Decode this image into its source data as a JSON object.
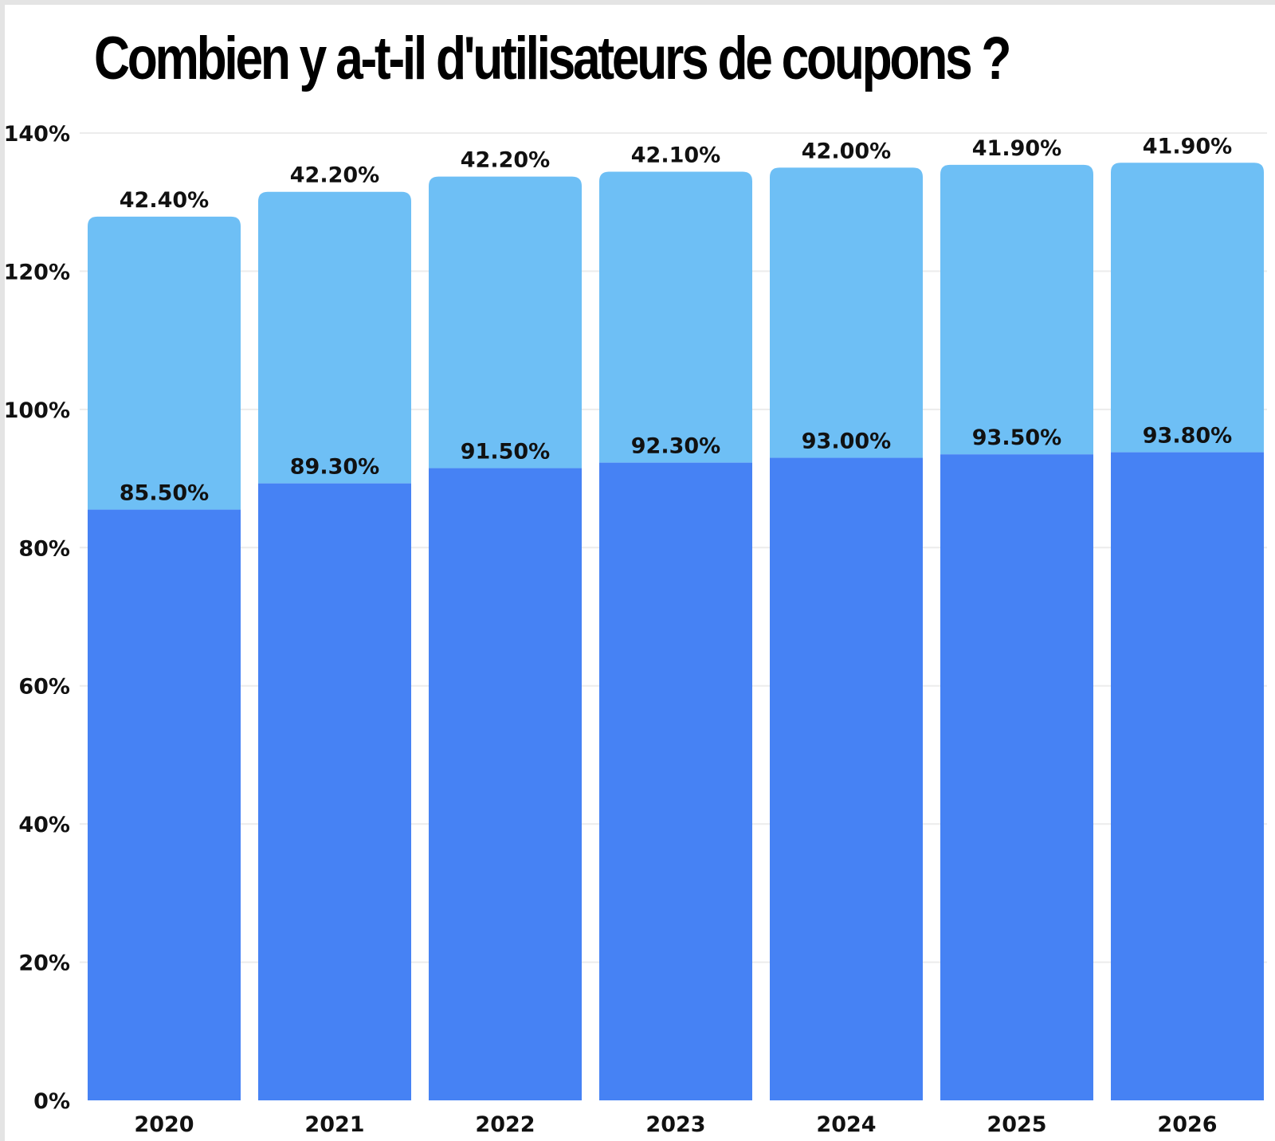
{
  "title": "Combien y a-t-il d'utilisateurs de coupons ?",
  "colors": {
    "bottom_series": "#4682F4",
    "top_series": "#6EBFF5",
    "grid": "#ececec",
    "text": "#111111"
  },
  "chart_data": {
    "type": "bar",
    "stacked": true,
    "title": "Combien y a-t-il d'utilisateurs de coupons ?",
    "categories": [
      "2020",
      "2021",
      "2022",
      "2023",
      "2024",
      "2025",
      "2026"
    ],
    "series": [
      {
        "values": [
          85.5,
          89.3,
          91.5,
          92.3,
          93.0,
          93.5,
          93.8
        ],
        "labels": [
          "85.50%",
          "89.30%",
          "91.50%",
          "92.30%",
          "93.00%",
          "93.50%",
          "93.80%"
        ],
        "color": "#4682F4"
      },
      {
        "values": [
          42.4,
          42.2,
          42.2,
          42.1,
          42.0,
          41.9,
          41.9
        ],
        "labels": [
          "42.40%",
          "42.20%",
          "42.20%",
          "42.10%",
          "42.00%",
          "41.90%",
          "41.90%"
        ],
        "color": "#6EBFF5"
      }
    ],
    "y_ticks": [
      "0%",
      "20%",
      "40%",
      "60%",
      "80%",
      "100%",
      "120%",
      "140%"
    ],
    "ylim": [
      0,
      140
    ],
    "xlabel": "",
    "ylabel": "",
    "grid": true,
    "legend": "none"
  }
}
